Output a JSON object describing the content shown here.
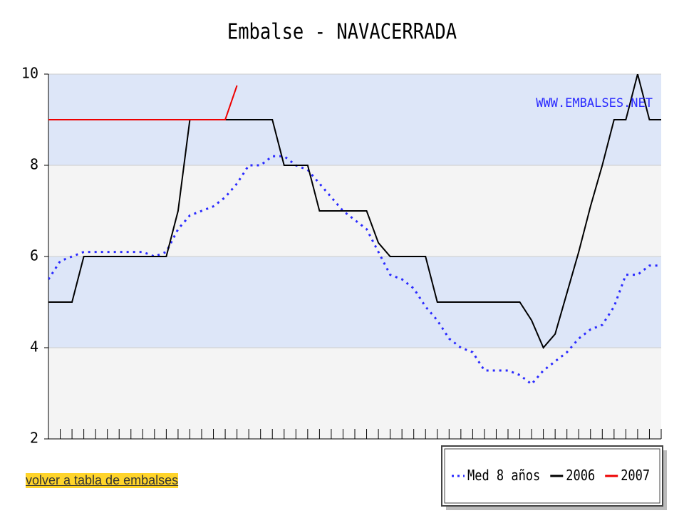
{
  "chart_data": {
    "type": "line",
    "title": "Embalse - NAVACERRADA",
    "watermark": "WWW.EMBALSES.NET",
    "categories": [
      null,
      null,
      null,
      null,
      null,
      null,
      null,
      null,
      null,
      null,
      null,
      null,
      null,
      null,
      null,
      null,
      null,
      null,
      null,
      null,
      null,
      null,
      null,
      null,
      null,
      null,
      null,
      null,
      null,
      null,
      null,
      null,
      null,
      null,
      null,
      null,
      null,
      null,
      null,
      null,
      null,
      null,
      null,
      null,
      null,
      null,
      null,
      null,
      null,
      null,
      null,
      null,
      null
    ],
    "ylim": [
      2,
      10
    ],
    "yticks": [
      2,
      4,
      6,
      8,
      10
    ],
    "bands": [
      "#f4f4f4",
      "#dde6f8"
    ],
    "legend": "bottom-right",
    "series": [
      {
        "name": "Med 8 años",
        "color": "#2a2aff",
        "style": "dotted",
        "values": [
          5.5,
          5.9,
          6.0,
          6.1,
          6.1,
          6.1,
          6.1,
          6.1,
          6.1,
          6.0,
          6.1,
          6.6,
          6.9,
          7.0,
          7.1,
          7.3,
          7.6,
          8.0,
          8.0,
          8.2,
          8.2,
          8.0,
          7.9,
          7.6,
          7.3,
          7.0,
          6.8,
          6.6,
          6.1,
          5.6,
          5.5,
          5.3,
          4.9,
          4.6,
          4.2,
          4.0,
          3.9,
          3.5,
          3.5,
          3.5,
          3.4,
          3.2,
          3.5,
          3.7,
          3.9,
          4.2,
          4.4,
          4.5,
          4.9,
          5.6,
          5.6,
          5.8,
          5.8
        ]
      },
      {
        "name": "2006",
        "color": "#000000",
        "style": "solid",
        "values": [
          5,
          5,
          5,
          6,
          6,
          6,
          6,
          6,
          6,
          6,
          6,
          7,
          9,
          9,
          9,
          9,
          9,
          9,
          9,
          9,
          8,
          8,
          8,
          7,
          7,
          7,
          7,
          7,
          6.3,
          6,
          6,
          6,
          6,
          5,
          5,
          5,
          5,
          5,
          5,
          5,
          5,
          4.6,
          4,
          4.3,
          5.2,
          6.1,
          7.1,
          8.0,
          9,
          9,
          10,
          9,
          9
        ]
      },
      {
        "name": "2007",
        "color": "#ee0000",
        "style": "solid",
        "values": [
          9,
          9,
          9,
          9,
          9,
          9,
          9,
          9,
          9,
          9,
          9,
          9,
          9,
          9,
          9,
          9,
          9.75,
          null,
          null,
          null,
          null,
          null,
          null,
          null,
          null,
          null,
          null,
          null,
          null,
          null,
          null,
          null,
          null,
          null,
          null,
          null,
          null,
          null,
          null,
          null,
          null,
          null,
          null,
          null,
          null,
          null,
          null,
          null,
          null,
          null,
          null,
          null,
          null
        ]
      }
    ]
  },
  "link": "volver a tabla de embalses"
}
